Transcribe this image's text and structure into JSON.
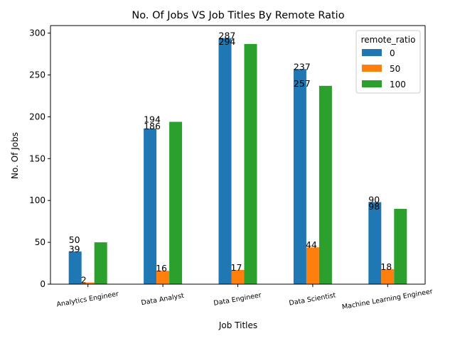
{
  "chart_data": {
    "type": "bar",
    "title": "No. Of Jobs VS Job Titles By Remote Ratio",
    "xlabel": "Job Titles",
    "ylabel": "No. Of Jobs",
    "categories": [
      "Analytics Engineer",
      "Data Analyst",
      "Data Engineer",
      "Data Scientist",
      "Machine Learning Engineer"
    ],
    "series": [
      {
        "name": "0",
        "color": "#1f77b4",
        "values": [
          39,
          186,
          294,
          257,
          98
        ]
      },
      {
        "name": "50",
        "color": "#ff7f0e",
        "values": [
          2,
          16,
          17,
          44,
          18
        ]
      },
      {
        "name": "100",
        "color": "#2ca02c",
        "values": [
          50,
          194,
          287,
          237,
          90
        ]
      }
    ],
    "bar_labels": [
      [
        "50",
        "39",
        "2"
      ],
      [
        "194",
        "186",
        "16"
      ],
      [
        "294",
        "287",
        "17"
      ],
      [
        "257",
        "237",
        "44"
      ],
      [
        "98",
        "90",
        "18"
      ]
    ],
    "ylim": [
      0,
      309
    ],
    "yticks": [
      0,
      50,
      100,
      150,
      200,
      250,
      300
    ],
    "legend": {
      "title": "remote_ratio",
      "placement": "top-right"
    },
    "grid": false
  }
}
